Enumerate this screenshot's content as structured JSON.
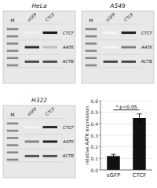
{
  "chart_data": [
    {
      "type": "heatmap",
      "title": "HeLa",
      "x": [
        "sGFP",
        "CTCF"
      ],
      "categories": [
        "CTCF",
        "AATK",
        "ACTB"
      ],
      "values": [
        [
          0.05,
          0.92
        ],
        [
          0.82,
          0.25
        ],
        [
          0.7,
          0.7
        ]
      ],
      "annotations": [
        "M"
      ]
    },
    {
      "type": "heatmap",
      "title": "A549",
      "x": [
        "sGFP",
        "CTCF"
      ],
      "categories": [
        "CTCF",
        "AATK",
        "ACTB"
      ],
      "values": [
        [
          0.04,
          0.88
        ],
        [
          0.04,
          0.5
        ],
        [
          0.72,
          0.72
        ]
      ],
      "annotations": [
        "M"
      ]
    },
    {
      "type": "heatmap",
      "title": "H322",
      "x": [
        "sGFP",
        "CTCF"
      ],
      "categories": [
        "CTCF",
        "AATK",
        "ACTB"
      ],
      "values": [
        [
          0.04,
          0.85
        ],
        [
          0.48,
          0.88
        ],
        [
          0.68,
          0.68
        ]
      ],
      "annotations": [
        "M"
      ]
    },
    {
      "type": "bar",
      "categories": [
        "sGFP",
        "CTCF"
      ],
      "values": [
        0.12,
        0.45
      ],
      "errors": [
        0.015,
        0.035
      ],
      "colors": [
        "#111111",
        "#111111"
      ],
      "ylabel": "relative AATK expression",
      "ylim": [
        0,
        0.6
      ],
      "yticks": [
        {
          "value": 0.0,
          "label": "0.0"
        },
        0.1,
        0.2,
        0.3,
        0.4,
        0.5,
        0.6
      ],
      "grid": true,
      "annotations": [
        {
          "text": "* p<0.05",
          "y": 0.52
        }
      ]
    }
  ]
}
